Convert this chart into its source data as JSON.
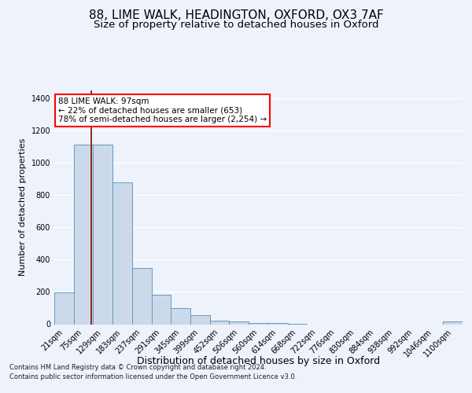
{
  "title1": "88, LIME WALK, HEADINGTON, OXFORD, OX3 7AF",
  "title2": "Size of property relative to detached houses in Oxford",
  "xlabel": "Distribution of detached houses by size in Oxford",
  "ylabel": "Number of detached properties",
  "bar_labels": [
    "21sqm",
    "75sqm",
    "129sqm",
    "183sqm",
    "237sqm",
    "291sqm",
    "345sqm",
    "399sqm",
    "452sqm",
    "506sqm",
    "560sqm",
    "614sqm",
    "668sqm",
    "722sqm",
    "776sqm",
    "830sqm",
    "884sqm",
    "938sqm",
    "992sqm",
    "1046sqm",
    "1100sqm"
  ],
  "bar_values": [
    195,
    1115,
    1115,
    880,
    350,
    185,
    100,
    55,
    20,
    15,
    8,
    5,
    4,
    0,
    0,
    0,
    0,
    0,
    0,
    0,
    15
  ],
  "bar_color": "#ccd9ea",
  "bar_edge_color": "#6699bb",
  "annotation_box_text": "88 LIME WALK: 97sqm\n← 22% of detached houses are smaller (653)\n78% of semi-detached houses are larger (2,254) →",
  "ylim": [
    0,
    1450
  ],
  "yticks": [
    0,
    200,
    400,
    600,
    800,
    1000,
    1200,
    1400
  ],
  "footnote1": "Contains HM Land Registry data © Crown copyright and database right 2024.",
  "footnote2": "Contains public sector information licensed under the Open Government Licence v3.0.",
  "background_color": "#eef2fb",
  "plot_background": "#eef2fb",
  "grid_color": "#ffffff",
  "title1_fontsize": 11,
  "title2_fontsize": 9.5,
  "tick_fontsize": 7,
  "ylabel_fontsize": 8,
  "xlabel_fontsize": 9
}
